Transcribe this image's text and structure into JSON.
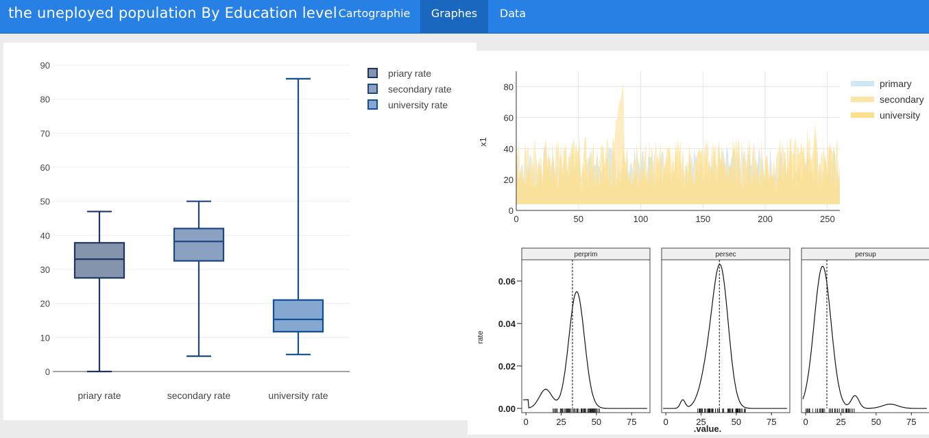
{
  "navbar": {
    "title": "the uneployed population By Education level",
    "tabs": [
      {
        "label": "Cartographie",
        "active": false
      },
      {
        "label": "Graphes",
        "active": true
      },
      {
        "label": "Data",
        "active": false
      }
    ],
    "colors": {
      "bar": "#2780e3",
      "active_tab": "#1967be"
    }
  },
  "chart_data": [
    {
      "type": "box",
      "categories": [
        "priary rate",
        "secondary rate",
        "university rate"
      ],
      "legend": [
        "priary rate",
        "secondary rate",
        "university rate"
      ],
      "legend_position": "top-right",
      "yticks": [
        "0",
        "10",
        "20",
        "30",
        "40",
        "50",
        "60",
        "70",
        "80",
        "90"
      ],
      "ylim": [
        0,
        90
      ],
      "boxes": [
        {
          "min": 0,
          "q1": 27.5,
          "median": 33,
          "q3": 37.8,
          "max": 47,
          "fill": "#8594ad",
          "stroke": "#1c3564"
        },
        {
          "min": 4.5,
          "q1": 32.5,
          "median": 38.2,
          "q3": 42,
          "max": 50,
          "fill": "#8aa1c2",
          "stroke": "#1d4782"
        },
        {
          "min": 5,
          "q1": 11.7,
          "median": 15.3,
          "q3": 21,
          "max": 86,
          "fill": "#86a7cf",
          "stroke": "#0f4f98"
        }
      ],
      "grid": true
    },
    {
      "type": "area",
      "ylabel": "x1",
      "xticks": [
        "0",
        "50",
        "100",
        "150",
        "200",
        "250"
      ],
      "yticks": [
        "0",
        "20",
        "40",
        "60",
        "80"
      ],
      "xlim": [
        0,
        260
      ],
      "ylim": [
        0,
        90
      ],
      "legend": [
        "primary",
        "secondary",
        "university"
      ],
      "legend_position": "right",
      "series_colors": [
        "#cfe6f3",
        "#fde5a8",
        "#fde08f"
      ],
      "grid": true
    },
    {
      "type": "line",
      "ylabel": "rate",
      "xlabel": ".value.",
      "facets": [
        "perprim",
        "persec",
        "persup"
      ],
      "xticks": [
        "0",
        "25",
        "50",
        "75"
      ],
      "yticks": [
        "0.00",
        "0.02",
        "0.04",
        "0.06"
      ],
      "xlim": [
        -3,
        88
      ],
      "ylim": [
        -0.002,
        0.07
      ],
      "density_peaks": [
        {
          "facet": "perprim",
          "peak_x": 36,
          "peak_y": 0.055,
          "median": 33
        },
        {
          "facet": "persec",
          "peak_x": 39,
          "peak_y": 0.063,
          "median": 38
        },
        {
          "facet": "persup",
          "peak_x": 12,
          "peak_y": 0.067,
          "median": 15
        }
      ]
    }
  ]
}
